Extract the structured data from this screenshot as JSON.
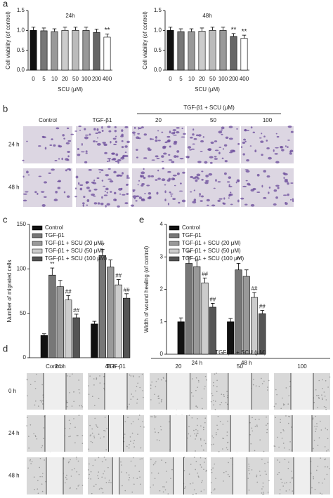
{
  "panel_letters": [
    "a",
    "b",
    "c",
    "d",
    "e"
  ],
  "chart_data": [
    {
      "type": "bar",
      "title": "24h",
      "xlabel": "SCU (μM)",
      "ylabel": "Cell viability (of control)",
      "categories": [
        "0",
        "5",
        "10",
        "20",
        "50",
        "100",
        "200",
        "400"
      ],
      "values": [
        1.0,
        0.99,
        0.97,
        1.0,
        1.0,
        1.0,
        0.95,
        0.83
      ],
      "errors": [
        0.08,
        0.07,
        0.07,
        0.08,
        0.08,
        0.08,
        0.08,
        0.08
      ],
      "colors": [
        "#111111",
        "#777777",
        "#999999",
        "#cccccc",
        "#bbbbbb",
        "#999999",
        "#666666",
        "#ffffff"
      ],
      "annotations": [
        null,
        null,
        null,
        null,
        null,
        null,
        null,
        "**"
      ],
      "ylim": [
        0,
        1.5
      ],
      "yticks": [
        {
          "value": 0,
          "label": "0.0"
        },
        0.5,
        {
          "value": 1,
          "label": "1.0"
        },
        1.5
      ]
    },
    {
      "type": "bar",
      "title": "48h",
      "xlabel": "SCU (μM)",
      "ylabel": "Cell viability (of control)",
      "categories": [
        "0",
        "5",
        "10",
        "20",
        "50",
        "100",
        "200",
        "400"
      ],
      "values": [
        1.0,
        0.97,
        0.97,
        0.98,
        1.0,
        1.0,
        0.85,
        0.8
      ],
      "errors": [
        0.08,
        0.07,
        0.07,
        0.08,
        0.08,
        0.08,
        0.07,
        0.08
      ],
      "colors": [
        "#111111",
        "#777777",
        "#999999",
        "#cccccc",
        "#bbbbbb",
        "#999999",
        "#666666",
        "#ffffff"
      ],
      "annotations": [
        null,
        null,
        null,
        null,
        null,
        null,
        "**",
        "**"
      ],
      "ylim": [
        0,
        1.5
      ],
      "yticks": [
        {
          "value": 0,
          "label": "0.0"
        },
        0.5,
        {
          "value": 1,
          "label": "1.0"
        },
        1.5
      ]
    },
    {
      "type": "grouped-bar",
      "ylabel": "Number of migrated cells",
      "categories": [
        "24 h",
        "48 h"
      ],
      "series": [
        {
          "name": "Control",
          "color": "#111111",
          "values": [
            25,
            38
          ],
          "errors": [
            2,
            3
          ],
          "annotations": [
            null,
            null
          ]
        },
        {
          "name": "TGF-β1",
          "color": "#777777",
          "values": [
            93,
            115
          ],
          "errors": [
            8,
            7
          ],
          "annotations": [
            "**",
            "**"
          ]
        },
        {
          "name": "TGF-β1 + SCU (20 μM)",
          "color": "#999999",
          "values": [
            80,
            102
          ],
          "errors": [
            7,
            8
          ],
          "annotations": [
            null,
            null
          ]
        },
        {
          "name": "TGF-β1 + SCU (50 μM)",
          "color": "#cccccc",
          "values": [
            65,
            82
          ],
          "errors": [
            5,
            6
          ],
          "annotations": [
            "##",
            "##"
          ]
        },
        {
          "name": "TGF-β1 + SCU (100 μM)",
          "color": "#555555",
          "values": [
            45,
            67
          ],
          "errors": [
            4,
            5
          ],
          "annotations": [
            "##",
            "##"
          ]
        }
      ],
      "ylim": [
        0,
        150
      ],
      "yticks": [
        0,
        50,
        100,
        150
      ]
    },
    {
      "type": "grouped-bar",
      "ylabel": "Width of wound healing (of control)",
      "categories": [
        "24 h",
        "48 h"
      ],
      "series": [
        {
          "name": "Control",
          "color": "#111111",
          "values": [
            1.0,
            1.0
          ],
          "errors": [
            0.12,
            0.1
          ],
          "annotations": [
            null,
            null
          ]
        },
        {
          "name": "TGF-β1",
          "color": "#777777",
          "values": [
            2.8,
            2.6
          ],
          "errors": [
            0.2,
            0.2
          ],
          "annotations": [
            "**",
            "**"
          ]
        },
        {
          "name": "TGF-β1 + SCU (20 μM)",
          "color": "#999999",
          "values": [
            2.7,
            2.4
          ],
          "errors": [
            0.2,
            0.2
          ],
          "annotations": [
            null,
            null
          ]
        },
        {
          "name": "TGF-β1 + SCU (50 μM)",
          "color": "#cccccc",
          "values": [
            2.2,
            1.75
          ],
          "errors": [
            0.15,
            0.15
          ],
          "annotations": [
            "##",
            "##"
          ]
        },
        {
          "name": "TGF-β1 + SCU (100 μM)",
          "color": "#555555",
          "values": [
            1.45,
            1.25
          ],
          "errors": [
            0.12,
            0.1
          ],
          "annotations": [
            "##",
            "##"
          ]
        }
      ],
      "ylim": [
        0,
        4
      ],
      "yticks": [
        0,
        1,
        2,
        3,
        4
      ]
    }
  ],
  "image_panels": [
    {
      "group_label": "TGF-β1 + SCU (μM)",
      "columns": [
        "Control",
        "TGF-β1",
        "20",
        "50",
        "100"
      ],
      "rows": [
        "24 h",
        "48 h"
      ]
    },
    {
      "group_label": "TGF-β1 + SCU (μM)",
      "columns": [
        "Control",
        "TGF-β1",
        "20",
        "50",
        "100"
      ],
      "rows": [
        "0 h",
        "24 h",
        "48 h"
      ]
    }
  ]
}
